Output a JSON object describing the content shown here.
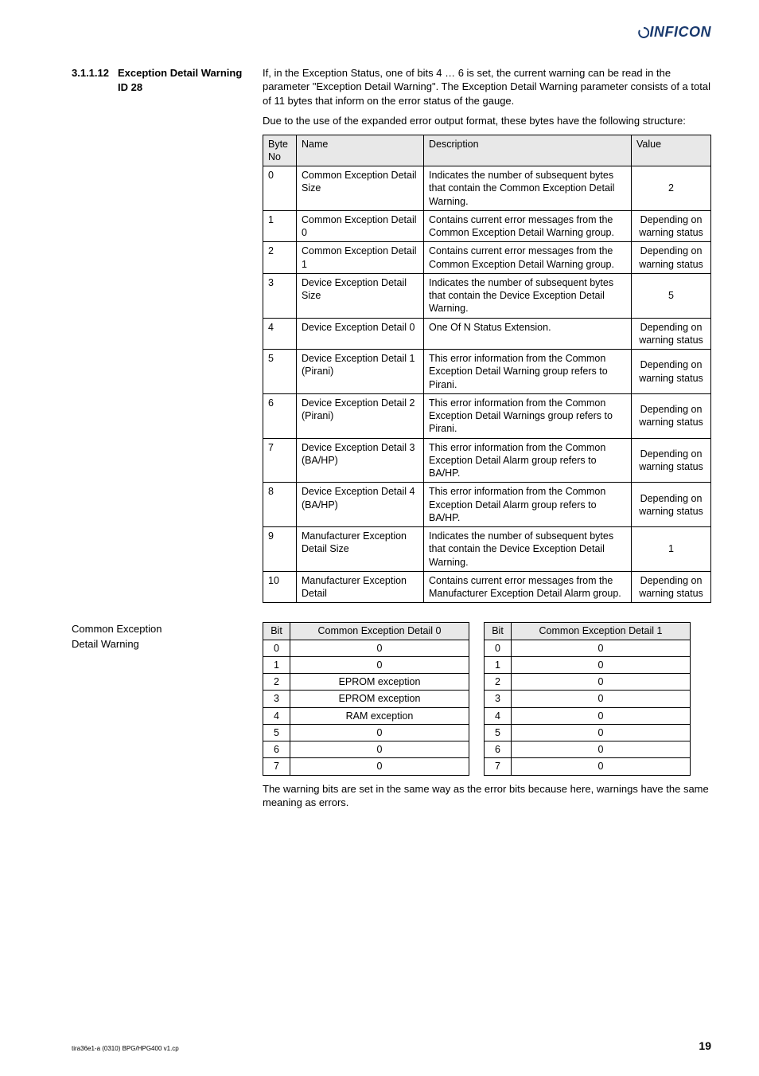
{
  "logo_text": "INFICON",
  "section": {
    "number": "3.1.1.12",
    "title_line1": "Exception Detail Warning",
    "title_line2": "ID 28"
  },
  "intro_para1": "If, in the Exception Status, one of bits 4 … 6 is set, the current warning can be read in the parameter \"Exception Detail Warning\". The Exception Detail Warning parameter consists of a total of 11 bytes that inform on the error status of the gauge.",
  "intro_para2": "Due to the use of the expanded error output format, these bytes have the following structure:",
  "main_table": {
    "headers": {
      "byte": "Byte No",
      "name": "Name",
      "desc": "Description",
      "value": "Value"
    },
    "rows": [
      {
        "byte": "0",
        "name": "Common Exception Detail Size",
        "desc": "Indicates the number of subsequent bytes that contain the Common Exception Detail Warning.",
        "value": "2"
      },
      {
        "byte": "1",
        "name": "Common Exception Detail 0",
        "desc": "Contains current error messages from the Common Exception Detail Warning group.",
        "value": "Depending on warning status"
      },
      {
        "byte": "2",
        "name": "Common Exception Detail 1",
        "desc": "Contains current error messages from the Common Exception Detail Warning group.",
        "value": "Depending on warning status"
      },
      {
        "byte": "3",
        "name": "Device Exception Detail Size",
        "desc": "Indicates the number of subsequent bytes that contain the Device Exception Detail Warning.",
        "value": "5"
      },
      {
        "byte": "4",
        "name": "Device Exception Detail 0",
        "desc": "One Of N Status Extension.",
        "value": "Depending on warning status"
      },
      {
        "byte": "5",
        "name": "Device Exception Detail 1 (Pirani)",
        "desc": "This error information from the Common Exception Detail Warning group refers to Pirani.",
        "value": "Depending on warning status"
      },
      {
        "byte": "6",
        "name": "Device Exception Detail 2 (Pirani)",
        "desc": "This error information from the Common Exception Detail Warnings group refers to Pirani.",
        "value": "Depending on warning status"
      },
      {
        "byte": "7",
        "name": "Device Exception Detail 3 (BA/HP)",
        "desc": "This error information from the Common Exception Detail Alarm group refers to BA/HP.",
        "value": "Depending on warning status"
      },
      {
        "byte": "8",
        "name": "Device Exception Detail 4 (BA/HP)",
        "desc": "This error information from the Common Exception Detail Alarm group refers to BA/HP.",
        "value": "Depending on warning status"
      },
      {
        "byte": "9",
        "name": "Manufacturer Exception Detail Size",
        "desc": "Indicates the number of subsequent bytes that contain the Device Exception Detail Warning.",
        "value": "1"
      },
      {
        "byte": "10",
        "name": "Manufacturer Exception Detail",
        "desc": "Contains current error messages from the Manufacturer Exception Detail Alarm group.",
        "value": "Depending on warning status"
      }
    ]
  },
  "subsection_title_line1": "Common Exception",
  "subsection_title_line2": "Detail Warning",
  "bit_table_0": {
    "header_bit": "Bit",
    "header_label": "Common Exception Detail 0",
    "rows": [
      {
        "bit": "0",
        "val": "0"
      },
      {
        "bit": "1",
        "val": "0"
      },
      {
        "bit": "2",
        "val": "EPROM exception"
      },
      {
        "bit": "3",
        "val": "EPROM exception"
      },
      {
        "bit": "4",
        "val": "RAM exception"
      },
      {
        "bit": "5",
        "val": "0"
      },
      {
        "bit": "6",
        "val": "0"
      },
      {
        "bit": "7",
        "val": "0"
      }
    ]
  },
  "bit_table_1": {
    "header_bit": "Bit",
    "header_label": "Common Exception Detail 1",
    "rows": [
      {
        "bit": "0",
        "val": "0"
      },
      {
        "bit": "1",
        "val": "0"
      },
      {
        "bit": "2",
        "val": "0"
      },
      {
        "bit": "3",
        "val": "0"
      },
      {
        "bit": "4",
        "val": "0"
      },
      {
        "bit": "5",
        "val": "0"
      },
      {
        "bit": "6",
        "val": "0"
      },
      {
        "bit": "7",
        "val": "0"
      }
    ]
  },
  "closing_para": "The warning bits are set in the same way as the error bits because here, warnings have the same meaning as errors.",
  "footer_left": "tira36e1-a   (0310)   BPG/HPG400 v1.cp",
  "footer_page": "19"
}
